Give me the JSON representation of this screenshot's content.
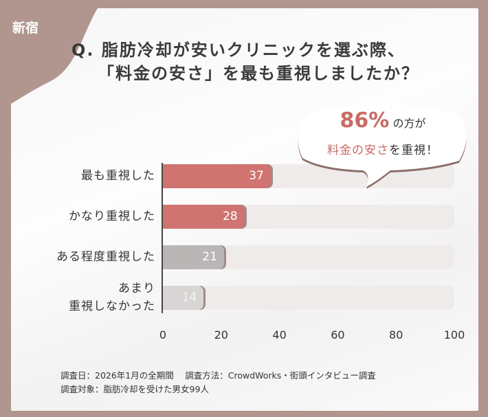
{
  "tag": "新宿",
  "title": {
    "line1": "Q. 脂肪冷却が安いクリニックを選ぶ際、",
    "line2": "「料金の安さ」を最も重視しましたか？"
  },
  "callout": {
    "percent": "86%",
    "text1": "の方が",
    "highlight": "料金の安さ",
    "text2": "を重視！"
  },
  "chart_data": {
    "type": "bar",
    "orientation": "horizontal",
    "categories": [
      "最も重視した",
      "かなり重視した",
      "ある程度重視した",
      "あまり 重視しなかった"
    ],
    "values": [
      37,
      28,
      21,
      14
    ],
    "xlim": [
      0,
      100
    ],
    "ticks": [
      "0",
      "20",
      "40",
      "60",
      "80",
      "100"
    ],
    "colors": [
      "#cf7470",
      "#cf7470",
      "#bab6b5",
      "#d8d5d4"
    ]
  },
  "footer": {
    "line1": "調査日：2026年1月の全期間　 調査方法：CrowdWorks・街頭インタビュー調査",
    "line2": "調査対象：脂肪冷却を受けた男女99人"
  }
}
